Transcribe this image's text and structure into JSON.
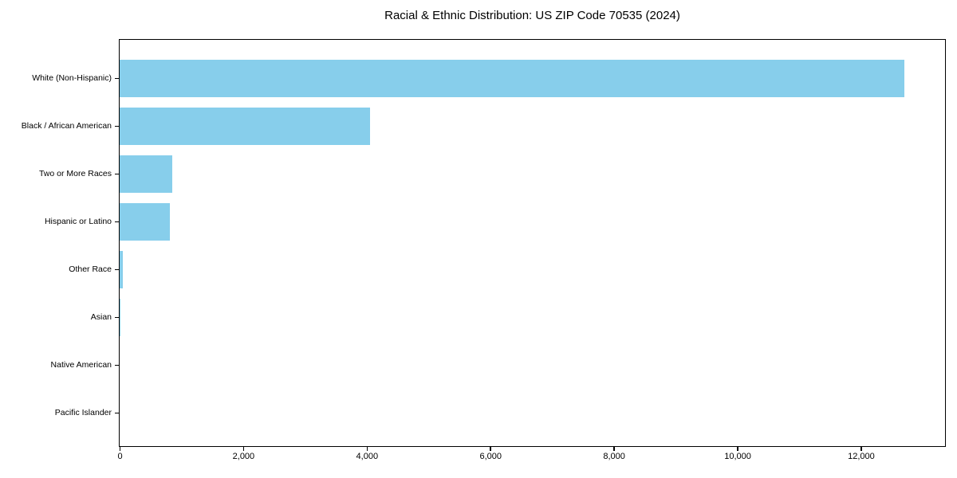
{
  "chart_data": {
    "type": "bar",
    "orientation": "horizontal",
    "title": "Racial & Ethnic Distribution: US ZIP Code 70535 (2024)",
    "categories": [
      "White (Non-Hispanic)",
      "Black / African American",
      "Two or More Races",
      "Hispanic or Latino",
      "Other Race",
      "Asian",
      "Native American",
      "Pacific Islander"
    ],
    "values": [
      12700,
      4050,
      850,
      810,
      50,
      10,
      0,
      0
    ],
    "xlabel": "",
    "ylabel": "",
    "xlim": [
      0,
      13350
    ],
    "xticks": [
      0,
      2000,
      4000,
      6000,
      8000,
      10000,
      12000
    ],
    "xtick_labels": [
      "0",
      "2,000",
      "4,000",
      "6,000",
      "8,000",
      "10,000",
      "12,000"
    ],
    "bar_color": "#87CEEB",
    "frame_color": "#000000",
    "background_color": "#ffffff",
    "grid": false,
    "legend": null
  }
}
